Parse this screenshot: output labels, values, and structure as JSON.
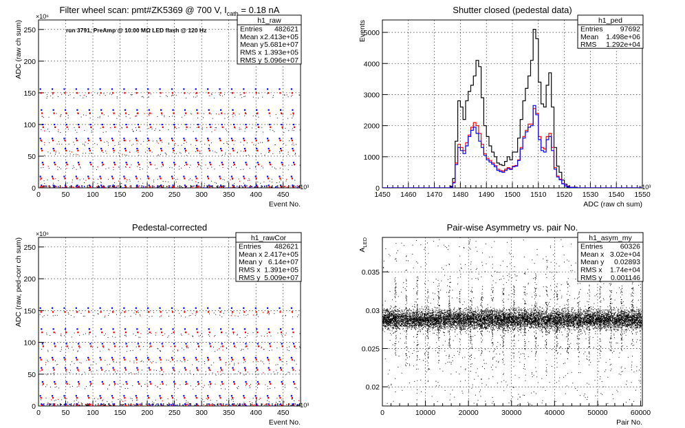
{
  "chart_data": [
    {
      "type": "scatter",
      "title": "Filter wheel scan: pmt#ZK5369 @   700 V, I",
      "title_sub": "cath",
      "title_tail": " = 0.18 nA",
      "annotation": "run 3791, PreAmp @ 10.00 MΩ LED flash @  120 Hz",
      "xlabel": "Event No.",
      "ylabel": "ADC (raw ch sum)",
      "x_exponent": "×10³",
      "y_exponent": "×10⁶",
      "xlim": [
        0,
        482
      ],
      "ylim": [
        0,
        265
      ],
      "xticks": [
        0,
        50,
        100,
        150,
        200,
        250,
        300,
        350,
        400,
        450
      ],
      "yticks": [
        0,
        50,
        100,
        150,
        200,
        250
      ],
      "series_colors": [
        "#0000ff",
        "#ff0000",
        "#000000"
      ],
      "levels": [
        [
          156,
          150
        ],
        [
          123,
          118
        ],
        [
          100,
          96
        ],
        [
          78,
          75
        ],
        [
          62,
          59
        ],
        [
          40,
          37
        ],
        [
          18,
          15
        ],
        [
          4,
          2
        ]
      ],
      "period": 22,
      "stats": {
        "name": "h1_raw",
        "rows": [
          {
            "label": "Entries",
            "value": "482621"
          },
          {
            "label": "Mean x",
            "value": "2.413e+05"
          },
          {
            "label": "Mean y",
            "value": "5.681e+07"
          },
          {
            "label": "RMS x",
            "value": "1.393e+05"
          },
          {
            "label": "RMS y",
            "value": "5.096e+07"
          }
        ]
      }
    },
    {
      "type": "line",
      "title": "Shutter closed (pedestal data)",
      "xlabel": "ADC (raw ch sum)",
      "ylabel": "Events",
      "x_exponent": "×10³",
      "xlim": [
        1450,
        1550
      ],
      "ylim": [
        0,
        5400
      ],
      "xticks": [
        1450,
        1460,
        1470,
        1480,
        1490,
        1500,
        1510,
        1520,
        1530,
        1540,
        1550
      ],
      "yticks": [
        0,
        1000,
        2000,
        3000,
        4000,
        5000
      ],
      "series": [
        {
          "color": "#000000",
          "x": [
            1450,
            1474,
            1476,
            1477,
            1478,
            1479,
            1480,
            1481,
            1482,
            1483,
            1484,
            1485,
            1486,
            1487,
            1488,
            1489,
            1490,
            1491,
            1492,
            1493,
            1494,
            1495,
            1496,
            1497,
            1498,
            1499,
            1500,
            1501,
            1502,
            1503,
            1504,
            1505,
            1506,
            1507,
            1508,
            1509,
            1510,
            1511,
            1512,
            1513,
            1514,
            1515,
            1516,
            1517,
            1518,
            1519,
            1520,
            1521,
            1522,
            1525,
            1550
          ],
          "values": [
            0,
            0,
            50,
            300,
            1500,
            2800,
            2600,
            2200,
            2800,
            3100,
            3300,
            3600,
            4100,
            3900,
            2900,
            2000,
            1650,
            1350,
            1150,
            1000,
            800,
            750,
            720,
            850,
            1000,
            900,
            1150,
            1150,
            1600,
            2200,
            2800,
            3200,
            3600,
            4100,
            5100,
            4800,
            3400,
            2700,
            2600,
            3300,
            3700,
            2600,
            1300,
            700,
            500,
            250,
            120,
            60,
            20,
            0,
            0
          ]
        },
        {
          "color": "#ff0000",
          "x": [
            1450,
            1474,
            1476,
            1477,
            1478,
            1479,
            1480,
            1481,
            1482,
            1483,
            1484,
            1485,
            1486,
            1487,
            1488,
            1489,
            1490,
            1491,
            1492,
            1493,
            1494,
            1495,
            1496,
            1497,
            1498,
            1499,
            1500,
            1501,
            1502,
            1503,
            1504,
            1505,
            1506,
            1507,
            1508,
            1509,
            1510,
            1511,
            1512,
            1513,
            1514,
            1515,
            1516,
            1517,
            1518,
            1519,
            1520,
            1521,
            1522,
            1525,
            1550
          ],
          "values": [
            0,
            0,
            30,
            180,
            800,
            1400,
            1300,
            1200,
            1450,
            1700,
            1950,
            2100,
            2000,
            1750,
            1400,
            1100,
            950,
            880,
            800,
            720,
            600,
            560,
            540,
            600,
            650,
            620,
            700,
            720,
            900,
            1300,
            1650,
            1850,
            2050,
            2050,
            2550,
            2400,
            1650,
            1300,
            1250,
            1650,
            1750,
            1300,
            650,
            380,
            280,
            140,
            70,
            30,
            10,
            0,
            0
          ]
        },
        {
          "color": "#0000ff",
          "x": [
            1450,
            1474,
            1476,
            1477,
            1478,
            1479,
            1480,
            1481,
            1482,
            1483,
            1484,
            1485,
            1486,
            1487,
            1488,
            1489,
            1490,
            1491,
            1492,
            1493,
            1494,
            1495,
            1496,
            1497,
            1498,
            1499,
            1500,
            1501,
            1502,
            1503,
            1504,
            1505,
            1506,
            1507,
            1508,
            1509,
            1510,
            1511,
            1512,
            1513,
            1514,
            1515,
            1516,
            1517,
            1518,
            1519,
            1520,
            1521,
            1522,
            1525,
            1550
          ],
          "values": [
            0,
            0,
            25,
            160,
            750,
            1300,
            1200,
            1100,
            1350,
            1650,
            1850,
            1950,
            1750,
            1500,
            1300,
            1050,
            900,
            830,
            760,
            680,
            560,
            520,
            500,
            560,
            620,
            590,
            680,
            700,
            880,
            1250,
            1600,
            1800,
            1950,
            2000,
            2650,
            2350,
            1550,
            1200,
            1150,
            1550,
            1650,
            1200,
            600,
            350,
            260,
            130,
            60,
            25,
            10,
            0,
            0
          ]
        }
      ],
      "stats": {
        "name": "h1_ped",
        "rows": [
          {
            "label": "Entries",
            "value": "97692"
          },
          {
            "label": "Mean",
            "value": "1.498e+06"
          },
          {
            "label": "RMS",
            "value": "1.292e+04"
          }
        ]
      }
    },
    {
      "type": "scatter",
      "title": "Pedestal-corrected",
      "xlabel": "Event No.",
      "ylabel": "ADC (raw, ped-corr ch sum)",
      "x_exponent": "×10³",
      "y_exponent": "×10⁶",
      "xlim": [
        0,
        482
      ],
      "ylim": [
        0,
        265
      ],
      "xticks": [
        0,
        50,
        100,
        150,
        200,
        250,
        300,
        350,
        400,
        450
      ],
      "yticks": [
        0,
        50,
        100,
        150,
        200,
        250
      ],
      "series_colors": [
        "#0000ff",
        "#ff0000",
        "#000000"
      ],
      "levels": [
        [
          154,
          148
        ],
        [
          121,
          116
        ],
        [
          98,
          94
        ],
        [
          76,
          73
        ],
        [
          60,
          57
        ],
        [
          38,
          35
        ],
        [
          16,
          13
        ],
        [
          3,
          1
        ]
      ],
      "period": 22,
      "stats": {
        "name": "h1_rawCor",
        "rows": [
          {
            "label": "Entries",
            "value": "482621"
          },
          {
            "label": "Mean x",
            "value": "2.417e+05"
          },
          {
            "label": "Mean y",
            "value": "6.14e+07"
          },
          {
            "label": "RMS x",
            "value": "1.391e+05"
          },
          {
            "label": "RMS y",
            "value": "5.009e+07"
          }
        ]
      }
    },
    {
      "type": "scatter",
      "title": "Pair-wise Asymmetry vs. pair No.",
      "xlabel": "Pair No.",
      "ylabel": "A",
      "ylabel_sub": "LED",
      "xlim": [
        0,
        60400
      ],
      "ylim": [
        0.0175,
        0.0395
      ],
      "xticks": [
        0,
        10000,
        20000,
        30000,
        40000,
        50000,
        60000
      ],
      "yticks": [
        0.02,
        0.025,
        0.03,
        0.035
      ],
      "ytick_labels": [
        "0.02",
        "0.025",
        "0.03",
        "0.035"
      ],
      "center": 0.0288,
      "band_halfwidth": 0.0006,
      "spike_period": 2500,
      "stats": {
        "name": "h1_asym_my",
        "rows": [
          {
            "label": "Entries",
            "value": "60326"
          },
          {
            "label": "Mean x",
            "value": "3.02e+04"
          },
          {
            "label": "Mean y",
            "value": "0.02893"
          },
          {
            "label": "RMS x",
            "value": "1.74e+04"
          },
          {
            "label": "RMS y",
            "value": "0.001146"
          }
        ]
      }
    }
  ]
}
